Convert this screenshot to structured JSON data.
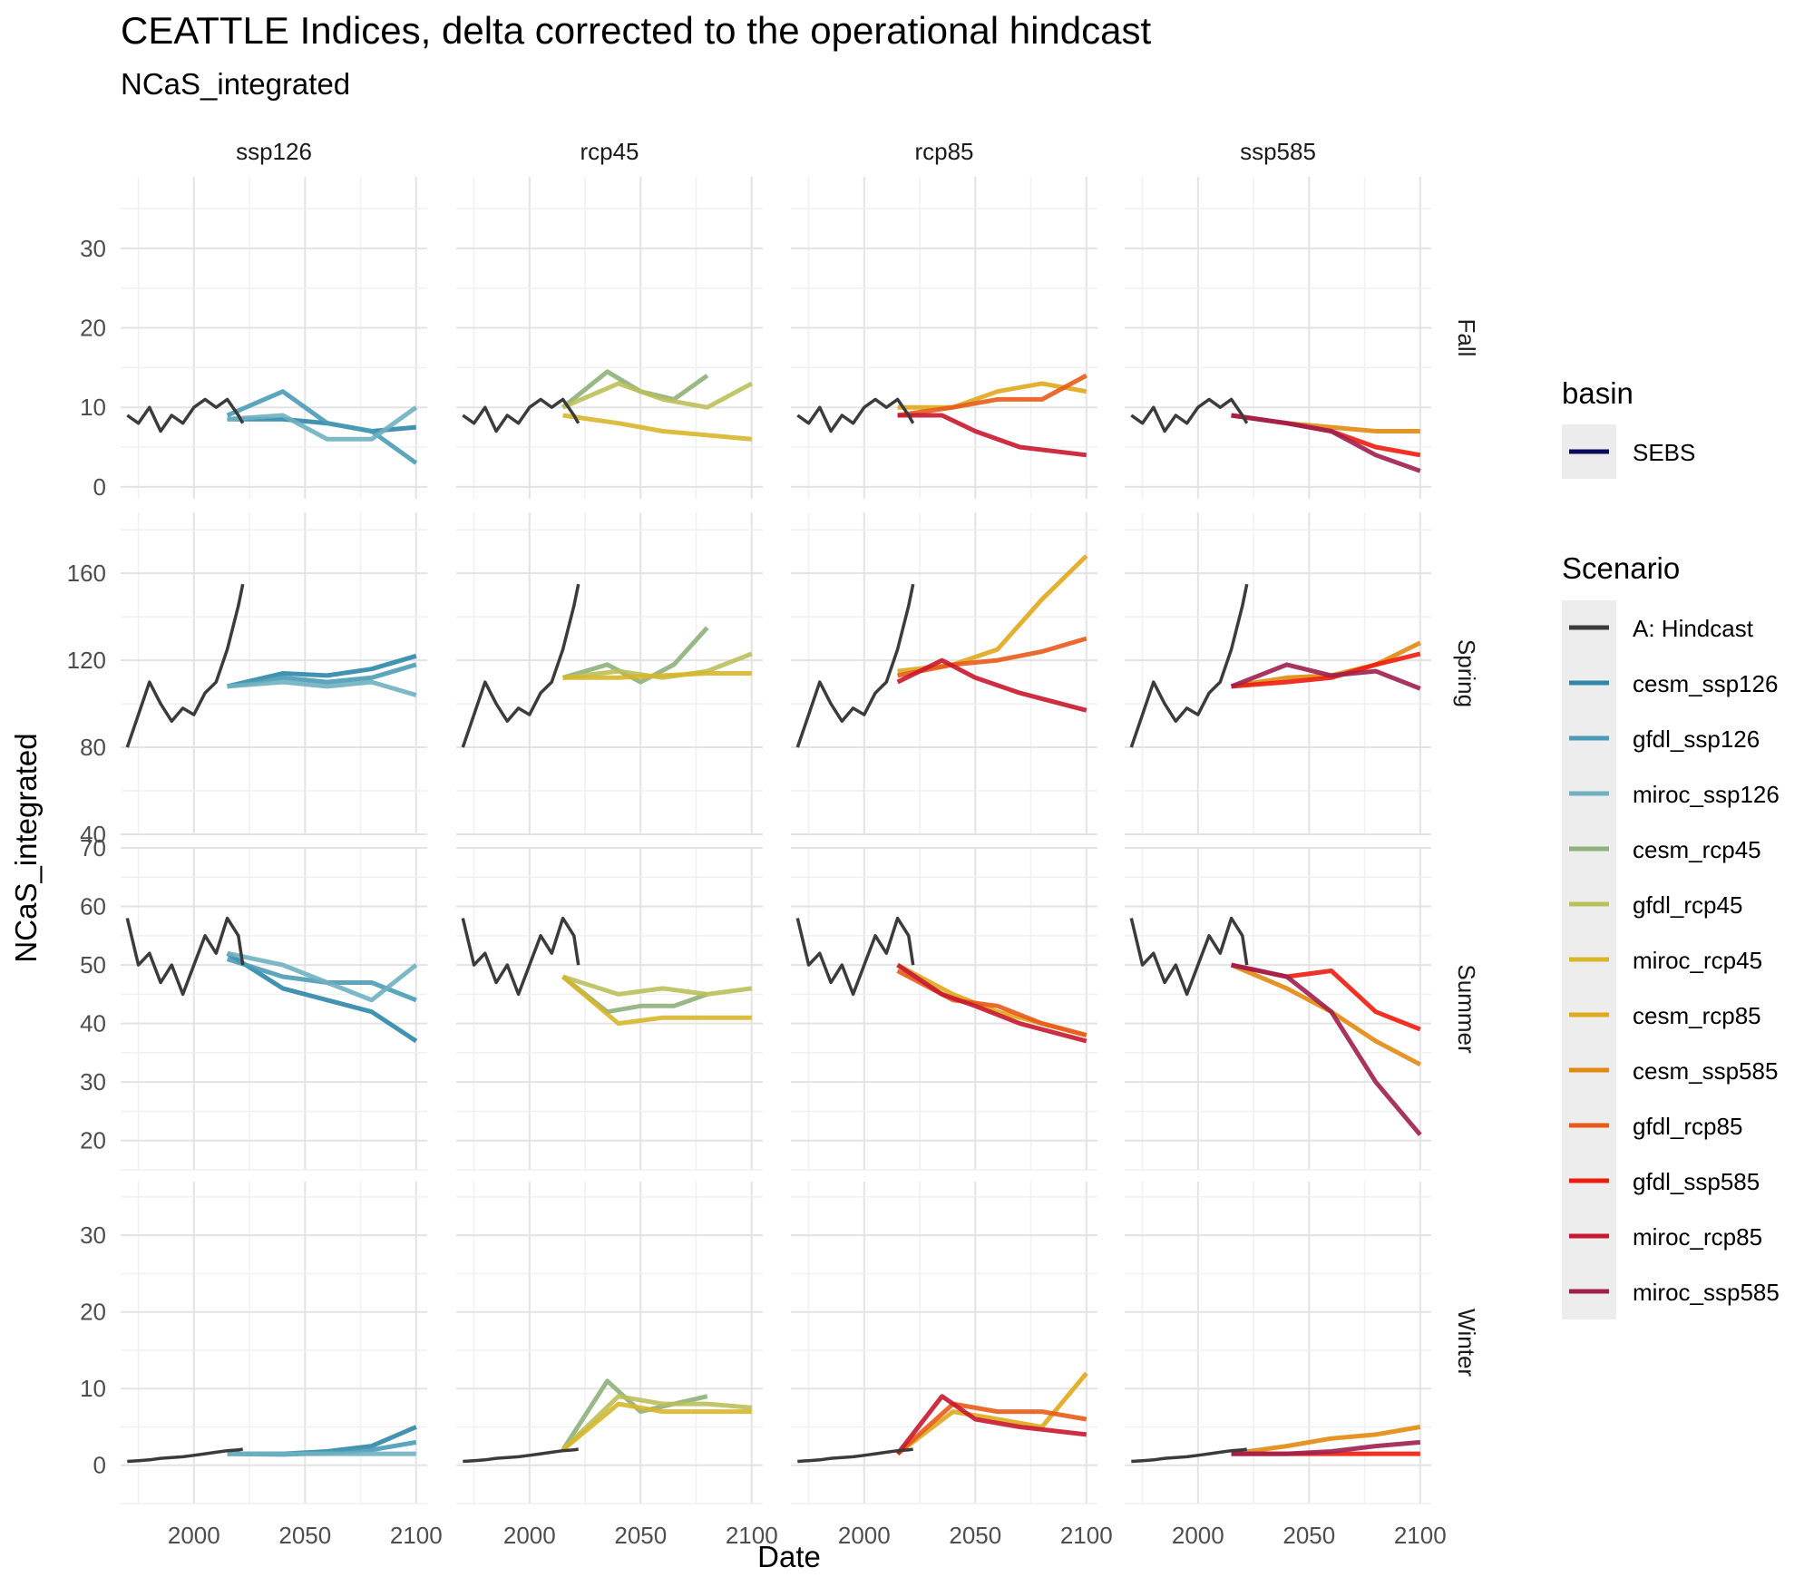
{
  "title": "CEATTLE Indices, delta corrected to the operational hindcast",
  "subtitle": "NCaS_integrated",
  "colors": {
    "A: Hindcast": "#3b3b3b",
    "cesm_ssp126": "#2e86a8",
    "gfdl_ssp126": "#4a9bb5",
    "miroc_ssp126": "#6fb0c0",
    "cesm_rcp45": "#8fb07a",
    "gfdl_rcp45": "#bbbf5a",
    "miroc_rcp45": "#d7b62a",
    "cesm_rcp85": "#e0a81c",
    "cesm_ssp585": "#e28a10",
    "gfdl_rcp85": "#e85a1a",
    "gfdl_ssp585": "#ee1c0e",
    "miroc_rcp85": "#c8172e",
    "miroc_ssp585": "#9e1f4e",
    "basin_SEBS": "#0a0a5a"
  },
  "chart_data": {
    "type": "line",
    "title": "CEATTLE Indices, delta corrected to the operational hindcast",
    "subtitle": "NCaS_integrated",
    "xlabel": "Date",
    "ylabel": "NCaS_integrated",
    "x_ticks": [
      "2000",
      "2050",
      "2100"
    ],
    "xlim": [
      1967,
      2105
    ],
    "columns": [
      "ssp126",
      "rcp45",
      "rcp85",
      "ssp585"
    ],
    "rows": [
      {
        "name": "Fall",
        "ylim": [
          -1.5,
          39
        ],
        "ticks": [
          0,
          10,
          20,
          30
        ]
      },
      {
        "name": "Spring",
        "ylim": [
          40,
          188
        ],
        "ticks": [
          40,
          80,
          120,
          160
        ]
      },
      {
        "name": "Summer",
        "ylim": [
          15,
          70
        ],
        "ticks": [
          20,
          30,
          40,
          50,
          60,
          70
        ]
      },
      {
        "name": "Winter",
        "ylim": [
          -5,
          37
        ],
        "ticks": [
          0,
          10,
          20,
          30
        ]
      }
    ],
    "grid": true,
    "legend_position": "right",
    "legend": {
      "basin_title": "basin",
      "basin_entries": [
        "SEBS"
      ],
      "scenario_title": "Scenario",
      "scenario_entries": [
        "A: Hindcast",
        "cesm_ssp126",
        "gfdl_ssp126",
        "miroc_ssp126",
        "cesm_rcp45",
        "gfdl_rcp45",
        "miroc_rcp45",
        "cesm_rcp85",
        "cesm_ssp585",
        "gfdl_rcp85",
        "gfdl_ssp585",
        "miroc_rcp85",
        "miroc_ssp585"
      ]
    },
    "hindcast": {
      "name": "A: Hindcast",
      "x": [
        1970,
        1975,
        1980,
        1985,
        1990,
        1995,
        2000,
        2005,
        2010,
        2015,
        2020,
        2022
      ],
      "Fall": [
        9,
        8,
        10,
        7,
        9,
        8,
        10,
        11,
        10,
        11,
        9,
        8
      ],
      "Spring": [
        80,
        95,
        110,
        100,
        92,
        98,
        95,
        105,
        110,
        125,
        145,
        155
      ],
      "Summer": [
        58,
        50,
        52,
        47,
        50,
        45,
        50,
        55,
        52,
        58,
        55,
        50
      ],
      "Winter": [
        0.5,
        0.6,
        0.7,
        0.9,
        1.0,
        1.1,
        1.3,
        1.5,
        1.7,
        1.9,
        2.0,
        2.1
      ]
    },
    "series": [
      {
        "name": "cesm_ssp126",
        "column": "ssp126",
        "x": [
          2015,
          2040,
          2060,
          2080,
          2100
        ],
        "Fall": [
          8.5,
          8.5,
          8,
          7,
          7.5
        ],
        "Spring": [
          108,
          114,
          113,
          116,
          122
        ],
        "Summer": [
          52,
          46,
          44,
          42,
          37
        ],
        "Winter": [
          1.5,
          1.5,
          1.8,
          2.5,
          5
        ]
      },
      {
        "name": "gfdl_ssp126",
        "column": "ssp126",
        "x": [
          2015,
          2040,
          2060,
          2080,
          2100
        ],
        "Fall": [
          9,
          12,
          8,
          7,
          3
        ],
        "Spring": [
          108,
          112,
          110,
          112,
          118
        ],
        "Summer": [
          51,
          48,
          47,
          47,
          44
        ],
        "Winter": [
          1.5,
          1.4,
          1.6,
          2,
          3
        ]
      },
      {
        "name": "miroc_ssp126",
        "column": "ssp126",
        "x": [
          2015,
          2040,
          2060,
          2080,
          2100
        ],
        "Fall": [
          8.5,
          9,
          6,
          6,
          10
        ],
        "Spring": [
          108,
          110,
          108,
          110,
          104
        ],
        "Summer": [
          52,
          50,
          47,
          44,
          50
        ],
        "Winter": [
          1.5,
          1.5,
          1.5,
          1.5,
          1.5
        ]
      },
      {
        "name": "cesm_rcp45",
        "column": "rcp45",
        "x": [
          2015,
          2035,
          2050,
          2065,
          2080
        ],
        "Fall": [
          10,
          14.5,
          12,
          11,
          14
        ],
        "Spring": [
          112,
          118,
          110,
          118,
          135
        ],
        "Summer": [
          48,
          42,
          43,
          43,
          45
        ],
        "Winter": [
          2,
          11,
          7,
          8,
          9
        ]
      },
      {
        "name": "gfdl_rcp45",
        "column": "rcp45",
        "x": [
          2015,
          2040,
          2060,
          2080,
          2100
        ],
        "Fall": [
          10,
          13,
          11,
          10,
          13
        ],
        "Spring": [
          112,
          115,
          112,
          115,
          123
        ],
        "Summer": [
          48,
          45,
          46,
          45,
          46
        ],
        "Winter": [
          2,
          9,
          8,
          8,
          7.5
        ]
      },
      {
        "name": "miroc_rcp45",
        "column": "rcp45",
        "x": [
          2015,
          2040,
          2060,
          2080,
          2100
        ],
        "Fall": [
          9,
          8,
          7,
          6.5,
          6
        ],
        "Spring": [
          112,
          112,
          113,
          114,
          114
        ],
        "Summer": [
          48,
          40,
          41,
          41,
          41
        ],
        "Winter": [
          2,
          8,
          7,
          7,
          7
        ]
      },
      {
        "name": "cesm_rcp85",
        "column": "rcp85",
        "x": [
          2015,
          2040,
          2060,
          2080,
          2100
        ],
        "Fall": [
          10,
          10,
          12,
          13,
          12
        ],
        "Spring": [
          115,
          118,
          125,
          148,
          168
        ],
        "Summer": [
          50,
          45,
          42,
          40,
          38
        ],
        "Winter": [
          1.5,
          7,
          6,
          5,
          12
        ]
      },
      {
        "name": "gfdl_rcp85",
        "column": "rcp85",
        "x": [
          2015,
          2040,
          2060,
          2080,
          2100
        ],
        "Fall": [
          9,
          10,
          11,
          11,
          14
        ],
        "Spring": [
          113,
          118,
          120,
          124,
          130
        ],
        "Summer": [
          49,
          44,
          43,
          40,
          38
        ],
        "Winter": [
          1.5,
          8,
          7,
          7,
          6
        ]
      },
      {
        "name": "miroc_rcp85",
        "column": "rcp85",
        "x": [
          2015,
          2035,
          2050,
          2070,
          2100
        ],
        "Fall": [
          9,
          9,
          7,
          5,
          4
        ],
        "Spring": [
          110,
          120,
          112,
          105,
          97
        ],
        "Summer": [
          50,
          45,
          43,
          40,
          37
        ],
        "Winter": [
          1.5,
          9,
          6,
          5,
          4
        ]
      },
      {
        "name": "cesm_ssp585",
        "column": "ssp585",
        "x": [
          2015,
          2040,
          2060,
          2080,
          2100
        ],
        "Fall": [
          9,
          8,
          7.5,
          7,
          7
        ],
        "Spring": [
          108,
          112,
          113,
          118,
          128
        ],
        "Summer": [
          50,
          46,
          42,
          37,
          33
        ],
        "Winter": [
          1.5,
          2.5,
          3.5,
          4,
          5
        ]
      },
      {
        "name": "gfdl_ssp585",
        "column": "ssp585",
        "x": [
          2015,
          2040,
          2060,
          2080,
          2100
        ],
        "Fall": [
          9,
          8,
          7,
          5,
          4
        ],
        "Spring": [
          108,
          110,
          112,
          118,
          123
        ],
        "Summer": [
          50,
          48,
          49,
          42,
          39
        ],
        "Winter": [
          1.5,
          1.5,
          1.5,
          1.5,
          1.5
        ]
      },
      {
        "name": "miroc_ssp585",
        "column": "ssp585",
        "x": [
          2015,
          2040,
          2060,
          2080,
          2100
        ],
        "Fall": [
          9,
          8,
          7,
          4,
          2
        ],
        "Spring": [
          108,
          118,
          113,
          115,
          107
        ],
        "Summer": [
          50,
          48,
          42,
          30,
          21
        ],
        "Winter": [
          1.5,
          1.5,
          1.8,
          2.5,
          3
        ]
      }
    ]
  }
}
